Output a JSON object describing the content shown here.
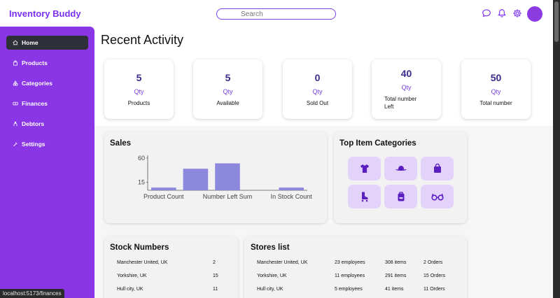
{
  "header": {
    "brand": "Inventory Buddy",
    "search_placeholder": "Search",
    "icons": [
      "chat-icon",
      "bell-icon",
      "gear-icon"
    ]
  },
  "sidebar": {
    "items": [
      {
        "label": "Home",
        "icon": "home-icon",
        "active": true
      },
      {
        "label": "Products",
        "icon": "bag-icon",
        "active": false
      },
      {
        "label": "Categories",
        "icon": "shapes-icon",
        "active": false
      },
      {
        "label": "Finances",
        "icon": "money-icon",
        "active": false
      },
      {
        "label": "Debtors",
        "icon": "person-icon",
        "active": false
      },
      {
        "label": "Settings",
        "icon": "wrench-icon",
        "active": false
      }
    ]
  },
  "page": {
    "title": "Recent Activity"
  },
  "stats": [
    {
      "value": "5",
      "qty": "Qty",
      "label": "Products"
    },
    {
      "value": "5",
      "qty": "Qty",
      "label": "Available"
    },
    {
      "value": "0",
      "qty": "Qty",
      "label": "Sold Out"
    },
    {
      "value": "40",
      "qty": "Qty",
      "label_line1": "Total number",
      "label_line2": "Left"
    },
    {
      "value": "50",
      "qty": "Qty",
      "label": "Total number"
    }
  ],
  "sales": {
    "title": "Sales",
    "chart_data": {
      "type": "bar",
      "categories": [
        "Product Count",
        "",
        "Number Left Sum",
        "",
        "In Stock Count"
      ],
      "values": [
        5,
        40,
        50,
        0,
        5
      ],
      "yticks": [
        "60",
        "15"
      ],
      "ylim": [
        0,
        65
      ],
      "color": "#8b88de"
    }
  },
  "top_categories": {
    "title": "Top Item Categories",
    "icons": [
      "tshirt-icon",
      "hat-icon",
      "shopping-bag-icon",
      "roller-skate-icon",
      "backpack-icon",
      "glasses-icon"
    ]
  },
  "stock_numbers": {
    "title": "Stock Numbers",
    "rows": [
      {
        "location": "Manchester United, UK",
        "count": "2"
      },
      {
        "location": "Yorkshire, UK",
        "count": "15"
      },
      {
        "location": "Hull city, UK",
        "count": "11"
      }
    ]
  },
  "stores": {
    "title": "Stores list",
    "rows": [
      {
        "location": "Manchester United, UK",
        "employees": "23 employees",
        "items": "308 items",
        "orders": "2 Orders"
      },
      {
        "location": "Yorkshire, UK",
        "employees": "11 employees",
        "items": "291 items",
        "orders": "15 Orders"
      },
      {
        "location": "Hull city, UK",
        "employees": "5 employees",
        "items": "41 items",
        "orders": "11 Orders"
      }
    ]
  },
  "status_bar": {
    "url": "localhost:5173/finances"
  },
  "colors": {
    "accent": "#8a36e6",
    "brand": "#7b2ff2",
    "value": "#3b2a8c",
    "tile": "#e3d3fb",
    "icon": "#5b1fc0"
  }
}
